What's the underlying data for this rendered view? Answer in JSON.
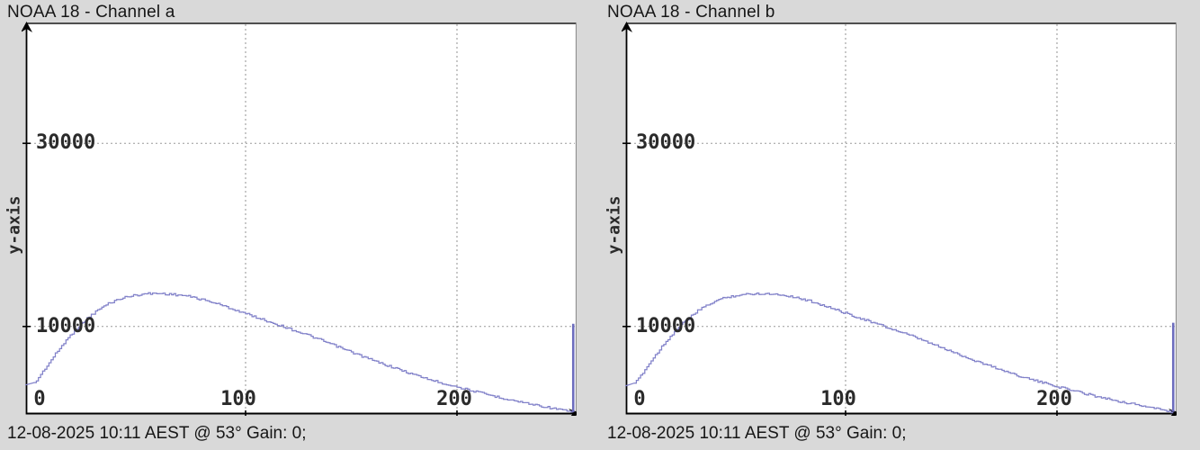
{
  "app": {
    "description_left_panel": "NOAA satellite histogram window, channel a",
    "description_right_panel": "NOAA satellite histogram window, channel b"
  },
  "colors": {
    "background": "#d9d9d9",
    "plot_background": "#ffffff",
    "axis": "#000000",
    "grid": "#9a9a9a",
    "curve": "#8181c9",
    "spike": "#6d6dbe",
    "text": "#161616",
    "tick_text": "#2b2b2b",
    "plot_border": "#8f8f8f"
  },
  "chart_data": [
    {
      "type": "line",
      "title": "NOAA 18 - Channel a",
      "ylabel": "y-axis",
      "xlabel": "",
      "caption": "12-08-2025 10:11 AEST @ 53° Gain: 0",
      "caption_partial": ";",
      "x_ticks": [
        0,
        100,
        200
      ],
      "y_ticks": [
        10000,
        30000
      ],
      "xlim": [
        0,
        255
      ],
      "ylim": [
        0,
        43000
      ],
      "grid": true,
      "legend": "none",
      "series": [
        {
          "name": "histogram",
          "x": [
            0,
            5,
            10,
            15,
            20,
            25,
            30,
            35,
            40,
            45,
            50,
            55,
            60,
            65,
            70,
            75,
            80,
            85,
            90,
            95,
            100,
            105,
            110,
            115,
            120,
            130,
            140,
            150,
            160,
            170,
            180,
            190,
            200,
            210,
            220,
            230,
            240,
            248,
            254
          ],
          "y": [
            3800,
            5400,
            7000,
            8500,
            9800,
            10900,
            11800,
            12500,
            13000,
            13300,
            13500,
            13600,
            13600,
            13500,
            13400,
            13200,
            12900,
            12600,
            12200,
            11800,
            11400,
            11000,
            10600,
            10200,
            9800,
            9000,
            8100,
            7200,
            6300,
            5500,
            4700,
            4000,
            3400,
            2800,
            2250,
            1750,
            1300,
            950,
            650
          ]
        }
      ],
      "last_bin_spike": {
        "x": 255,
        "y": 10300
      }
    },
    {
      "type": "line",
      "title": "NOAA 18 - Channel b",
      "ylabel": "y-axis",
      "xlabel": "",
      "caption": "12-08-2025 10:11 AEST @ 53° Gain: 0",
      "caption_partial": ";",
      "x_ticks": [
        0,
        100,
        200
      ],
      "y_ticks": [
        10000,
        30000
      ],
      "xlim": [
        0,
        255
      ],
      "ylim": [
        0,
        43000
      ],
      "grid": true,
      "legend": "none",
      "series": [
        {
          "name": "histogram",
          "x": [
            0,
            5,
            10,
            15,
            20,
            25,
            30,
            35,
            40,
            45,
            50,
            55,
            60,
            65,
            70,
            75,
            80,
            85,
            90,
            95,
            100,
            105,
            110,
            115,
            120,
            130,
            140,
            150,
            160,
            170,
            180,
            190,
            200,
            210,
            220,
            230,
            240,
            248,
            254
          ],
          "y": [
            3700,
            5300,
            6900,
            8400,
            9700,
            10800,
            11700,
            12400,
            12950,
            13250,
            13450,
            13550,
            13600,
            13550,
            13450,
            13250,
            12950,
            12650,
            12250,
            11850,
            11450,
            11050,
            10650,
            10250,
            9850,
            9050,
            8150,
            7250,
            6350,
            5550,
            4750,
            4050,
            3450,
            2850,
            2300,
            1800,
            1350,
            980,
            680
          ]
        }
      ],
      "last_bin_spike": {
        "x": 255,
        "y": 10400
      }
    }
  ]
}
